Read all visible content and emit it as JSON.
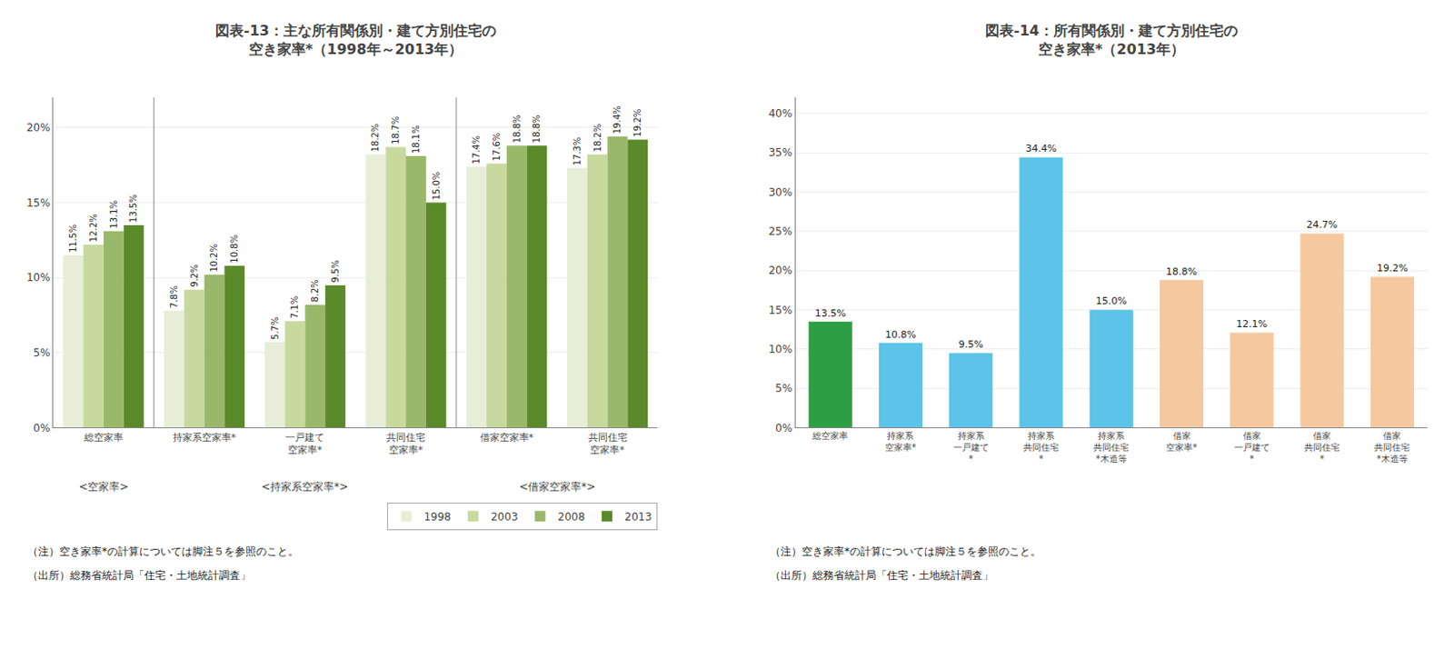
{
  "chart_data": [
    {
      "type": "bar",
      "title": "図表-13：主な所有関係別・建て方別住宅の\n空き家率*（1998年～2013年）",
      "categories": [
        "総空家率",
        "持家系空家率*",
        "一戸建て\n空家率*",
        "共同住宅\n空家率*",
        "借家空家率*",
        "共同住宅\n空家率*"
      ],
      "series": [
        {
          "name": "1998",
          "color": "#e8edd8",
          "values": [
            11.5,
            7.8,
            5.7,
            18.2,
            17.4,
            17.3
          ],
          "value_labels": [
            "11.5%",
            "7.8%",
            "5.7%",
            "18.2%",
            "17.4%",
            "17.3%"
          ]
        },
        {
          "name": "2003",
          "color": "#c8d99e",
          "values": [
            12.2,
            9.2,
            7.1,
            18.7,
            17.6,
            18.2
          ],
          "value_labels": [
            "12.2%",
            "9.2%",
            "7.1%",
            "18.7%",
            "17.6%",
            "18.2%"
          ]
        },
        {
          "name": "2008",
          "color": "#9ab86a",
          "values": [
            13.1,
            10.2,
            8.2,
            18.1,
            18.8,
            19.4
          ],
          "value_labels": [
            "13.1%",
            "10.2%",
            "8.2%",
            "18.1%",
            "18.8%",
            "19.4%"
          ]
        },
        {
          "name": "2013",
          "color": "#5a8a2a",
          "values": [
            13.5,
            10.8,
            9.5,
            15.0,
            18.8,
            19.2
          ],
          "value_labels": [
            "13.5%",
            "10.8%",
            "9.5%",
            "15.0%",
            "18.8%",
            "19.2%"
          ]
        }
      ],
      "ylim": [
        0,
        22
      ],
      "yticks": [
        {
          "value": 0,
          "label": "0%"
        },
        {
          "value": 5,
          "label": "5%"
        },
        {
          "value": 10,
          "label": "10%"
        },
        {
          "value": 15,
          "label": "15%"
        },
        {
          "value": 20,
          "label": "20%"
        }
      ],
      "grid": true,
      "legend": "lower right",
      "data_labels": true,
      "annotations": [
        {
          "text": "<空家率>",
          "categories": [
            0
          ]
        },
        {
          "text": "<持家系空家率*>",
          "categories": [
            1,
            2,
            3
          ]
        },
        {
          "text": "<借家空家率*>",
          "categories": [
            4,
            5
          ]
        },
        {
          "text": "（注）空き家率*の計算については脚注５を参照のこと。"
        },
        {
          "text": "（出所）総務省統計局「住宅・土地統計調査」"
        }
      ]
    },
    {
      "type": "bar",
      "title": "図表-14：所有関係別・建て方別住宅の\n空き家率*（2013年）",
      "categories": [
        "総空家率",
        "持家系\n空家率*",
        "持家系\n一戸建て\n*",
        "持家系\n共同住宅\n*",
        "持家系\n共同住宅\n*木造等",
        "借家\n空家率*",
        "借家\n一戸建て\n*",
        "借家\n共同住宅\n*",
        "借家\n共同住宅\n*木造等"
      ],
      "values": [
        13.5,
        10.8,
        9.5,
        34.4,
        15.0,
        18.8,
        12.1,
        24.7,
        19.2
      ],
      "value_labels": [
        "13.5%",
        "10.8%",
        "9.5%",
        "34.4%",
        "15.0%",
        "18.8%",
        "12.1%",
        "24.7%",
        "19.2%"
      ],
      "colors": [
        "#2e9e45",
        "#5bc4e8",
        "#5bc4e8",
        "#5bc4e8",
        "#5bc4e8",
        "#f5c8a0",
        "#f5c8a0",
        "#f5c8a0",
        "#f5c8a0"
      ],
      "ylim": [
        0,
        42
      ],
      "yticks": [
        {
          "value": 0,
          "label": "0%"
        },
        {
          "value": 5,
          "label": "5%"
        },
        {
          "value": 10,
          "label": "10%"
        },
        {
          "value": 15,
          "label": "15%"
        },
        {
          "value": 20,
          "label": "20%"
        },
        {
          "value": 25,
          "label": "25%"
        },
        {
          "value": 30,
          "label": "30%"
        },
        {
          "value": 35,
          "label": "35%"
        },
        {
          "value": 40,
          "label": "40%"
        }
      ],
      "grid": true,
      "data_labels": true,
      "annotations": [
        {
          "text": "（注）空き家率*の計算については脚注５を参照のこと。"
        },
        {
          "text": "（出所）総務省統計局「住宅・土地統計調査」"
        }
      ]
    }
  ]
}
